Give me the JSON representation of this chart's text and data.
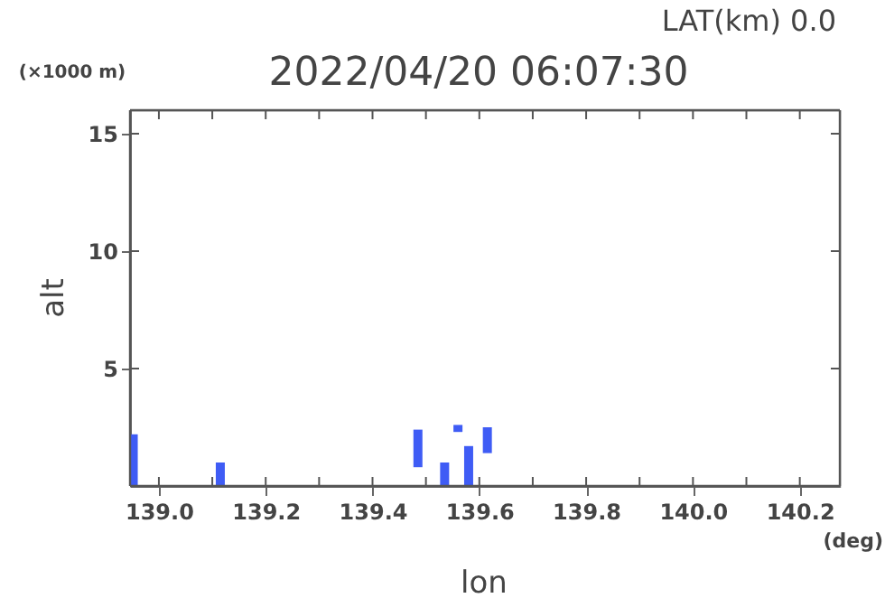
{
  "chart_data": {
    "type": "bar",
    "title": "2022/04/20 06:07:30",
    "xlabel": "lon",
    "ylabel": "alt",
    "annotations": [
      "LAT(km) 0.0",
      "(×1000 m)",
      "(deg)"
    ],
    "x": [
      138.952,
      139.115,
      139.485,
      139.535,
      139.56,
      139.58,
      139.615
    ],
    "base": [
      0,
      0,
      0.8,
      0,
      2.3,
      0,
      1.4
    ],
    "values": [
      2.2,
      1.0,
      1.6,
      1.0,
      0.3,
      1.7,
      1.1
    ],
    "color": "#3f5cf5",
    "xlim": [
      138.946,
      140.275
    ],
    "ylim": [
      0,
      16
    ],
    "xticks": [
      {
        "value": 139.0,
        "label": "139.0"
      },
      {
        "value": 139.1,
        "label": null
      },
      {
        "value": 139.2,
        "label": "139.2"
      },
      {
        "value": 139.3,
        "label": null
      },
      {
        "value": 139.4,
        "label": "139.4"
      },
      {
        "value": 139.5,
        "label": null
      },
      {
        "value": 139.6,
        "label": "139.6"
      },
      {
        "value": 139.7,
        "label": null
      },
      {
        "value": 139.8,
        "label": "139.8"
      },
      {
        "value": 139.9,
        "label": null
      },
      {
        "value": 140.0,
        "label": "140.0"
      },
      {
        "value": 140.1,
        "label": null
      },
      {
        "value": 140.2,
        "label": "140.2"
      }
    ],
    "yticks": [
      5,
      10,
      15
    ],
    "grid": false
  }
}
